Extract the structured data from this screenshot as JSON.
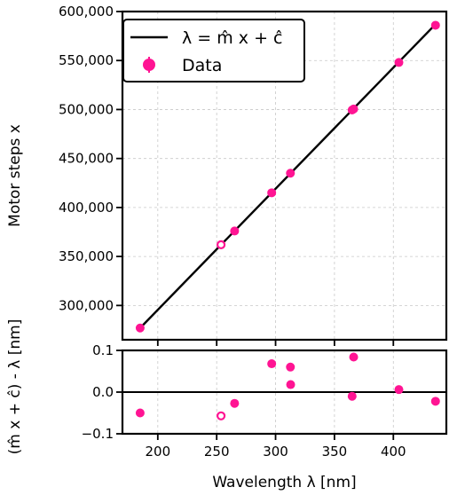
{
  "chart_data": [
    {
      "type": "scatter",
      "name": "calibration",
      "ylabel": "Motor steps x",
      "xlim": [
        170,
        445
      ],
      "ylim": [
        265000,
        600000
      ],
      "yticks": [
        300000,
        350000,
        400000,
        450000,
        500000,
        550000,
        600000
      ],
      "ytick_labels": [
        "300,000",
        "350,000",
        "400,000",
        "450,000",
        "500,000",
        "550,000",
        "600,000"
      ],
      "xticks": [
        200,
        250,
        300,
        350,
        400
      ],
      "grid": true,
      "legend_position": "top-left",
      "legend": {
        "fit_label": "λ = m̂ x + ĉ",
        "data_label": "Data"
      },
      "fit_line": {
        "x": [
          185,
          435
        ],
        "y": [
          277000,
          586000
        ]
      },
      "points": [
        {
          "x": 185.0,
          "y": 277000,
          "filled": true
        },
        {
          "x": 253.7,
          "y": 362000,
          "filled": false
        },
        {
          "x": 265.2,
          "y": 376000,
          "filled": true
        },
        {
          "x": 296.7,
          "y": 415000,
          "filled": true
        },
        {
          "x": 312.6,
          "y": 435000,
          "filled": true
        },
        {
          "x": 365.0,
          "y": 499500,
          "filled": true
        },
        {
          "x": 366.3,
          "y": 500500,
          "filled": true
        },
        {
          "x": 404.7,
          "y": 548000,
          "filled": true
        },
        {
          "x": 435.8,
          "y": 586000,
          "filled": true
        }
      ]
    },
    {
      "type": "scatter",
      "name": "residuals",
      "xlabel": "Wavelength λ [nm]",
      "ylabel": "(m̂ x + ĉ) - λ [nm]",
      "xlim": [
        170,
        445
      ],
      "ylim": [
        -0.1,
        0.1
      ],
      "xticks": [
        200,
        250,
        300,
        350,
        400
      ],
      "xtick_labels": [
        "200",
        "250",
        "300",
        "350",
        "400"
      ],
      "yticks": [
        -0.1,
        0.0,
        0.1
      ],
      "ytick_labels": [
        "−0.1",
        "0.0",
        "0.1"
      ],
      "zero_line": 0.0,
      "grid": true,
      "points": [
        {
          "x": 185.0,
          "y": -0.05,
          "filled": true
        },
        {
          "x": 253.7,
          "y": -0.057,
          "filled": false
        },
        {
          "x": 265.2,
          "y": -0.027,
          "filled": true
        },
        {
          "x": 296.7,
          "y": 0.068,
          "filled": true
        },
        {
          "x": 312.6,
          "y": 0.06,
          "filled": true
        },
        {
          "x": 312.8,
          "y": 0.018,
          "filled": true
        },
        {
          "x": 365.0,
          "y": -0.01,
          "filled": true
        },
        {
          "x": 366.3,
          "y": 0.084,
          "filled": true
        },
        {
          "x": 404.7,
          "y": 0.006,
          "filled": true
        },
        {
          "x": 435.8,
          "y": -0.022,
          "filled": true
        }
      ]
    }
  ],
  "colors": {
    "point": "#ff1493",
    "line": "#000000",
    "grid": "#c8c8c8"
  }
}
